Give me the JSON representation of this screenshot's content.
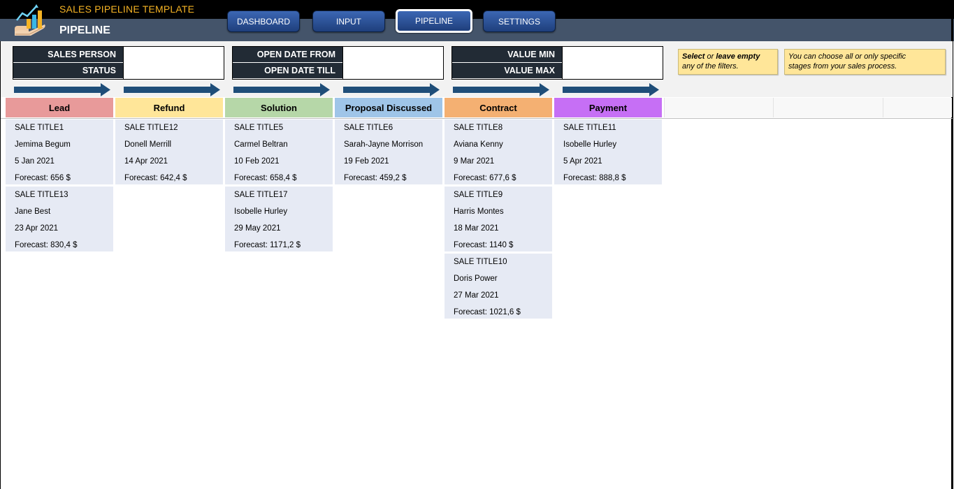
{
  "header": {
    "app_title": "SALES PIPELINE TEMPLATE",
    "page_title": "PIPELINE",
    "logo_icon": "chart-hand-logo-icon",
    "colors": {
      "top_bar": "#000000",
      "sub_bar": "#44546a",
      "app_title": "#f5b324"
    }
  },
  "nav": [
    {
      "label": "DASHBOARD",
      "active": false
    },
    {
      "label": "INPUT",
      "active": false
    },
    {
      "label": "PIPELINE",
      "active": true
    },
    {
      "label": "SETTINGS",
      "active": false
    }
  ],
  "filters": {
    "sales_person": {
      "label": "SALES PERSON",
      "value": ""
    },
    "status": {
      "label": "STATUS",
      "value": ""
    },
    "open_date_from": {
      "label": "OPEN DATE FROM",
      "value": ""
    },
    "open_date_till": {
      "label": "OPEN DATE TILL",
      "value": ""
    },
    "value_min": {
      "label": "VALUE MIN",
      "value": ""
    },
    "value_max": {
      "label": "VALUE MAX",
      "value": ""
    }
  },
  "notes": {
    "note1": {
      "bold1": "Select",
      "text1": " or ",
      "bold2": "leave empty",
      "text2": "any of the filters."
    },
    "note2": {
      "line1": "You can choose all or only specific",
      "line2": "stages from your sales process."
    }
  },
  "stages": [
    {
      "name": "Lead",
      "color": "#e89a9a"
    },
    {
      "name": "Refund",
      "color": "#ffe699"
    },
    {
      "name": "Solution",
      "color": "#b6d7a8"
    },
    {
      "name": "Proposal Discussed",
      "color": "#9fc5e8"
    },
    {
      "name": "Contract",
      "color": "#f4b072"
    },
    {
      "name": "Payment",
      "color": "#c66ff5"
    }
  ],
  "cards": {
    "lead": [
      {
        "title": "SALE TITLE1",
        "person": "Jemima Begum",
        "date": "5 Jan 2021",
        "forecast": "Forecast: 656 $"
      },
      {
        "title": "SALE TITLE13",
        "person": "Jane Best",
        "date": "23 Apr 2021",
        "forecast": "Forecast: 830,4 $"
      }
    ],
    "refund": [
      {
        "title": "SALE TITLE12",
        "person": "Donell Merrill",
        "date": "14 Apr 2021",
        "forecast": "Forecast: 642,4 $"
      }
    ],
    "solution": [
      {
        "title": "SALE TITLE5",
        "person": "Carmel Beltran",
        "date": "10 Feb 2021",
        "forecast": "Forecast: 658,4 $"
      },
      {
        "title": "SALE TITLE17",
        "person": "Isobelle Hurley",
        "date": "29 May 2021",
        "forecast": "Forecast: 1171,2 $"
      }
    ],
    "proposal": [
      {
        "title": "SALE TITLE6",
        "person": "Sarah-Jayne Morrison",
        "date": "19 Feb 2021",
        "forecast": "Forecast: 459,2 $"
      }
    ],
    "contract": [
      {
        "title": "SALE TITLE8",
        "person": "Aviana Kenny",
        "date": "9 Mar 2021",
        "forecast": "Forecast: 677,6 $"
      },
      {
        "title": "SALE TITLE9",
        "person": "Harris Montes",
        "date": "18 Mar 2021",
        "forecast": "Forecast: 1140 $"
      },
      {
        "title": "SALE TITLE10",
        "person": "Doris Power",
        "date": "27 Mar 2021",
        "forecast": "Forecast: 1021,6 $"
      }
    ],
    "payment": [
      {
        "title": "SALE TITLE11",
        "person": "Isobelle Hurley",
        "date": "5 Apr 2021",
        "forecast": "Forecast: 888,8 $"
      }
    ]
  },
  "colors": {
    "card_bg": "#e6eaf4",
    "arrow": "#1f4e79",
    "filter_label_bg": "#222b35",
    "note_bg": "#ffe699"
  }
}
